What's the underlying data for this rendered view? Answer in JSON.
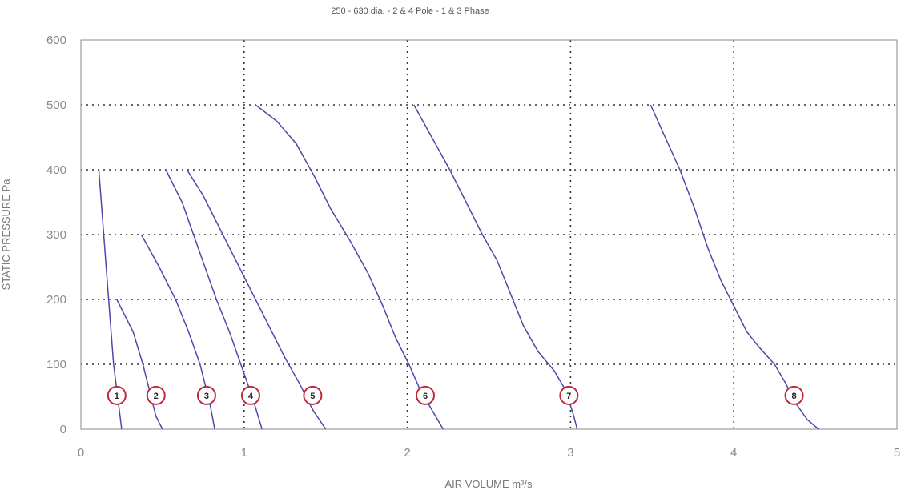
{
  "chart_data": {
    "type": "line",
    "title": "250 - 630 dia. - 2 & 4 Pole - 1 & 3 Phase",
    "xlabel": "AIR VOLUME m³/s",
    "ylabel": "STATIC PRESSURE Pa",
    "xlim": [
      0,
      5
    ],
    "ylim": [
      0,
      600
    ],
    "xticks": [
      "0",
      "1",
      "2",
      "3",
      "4",
      "5"
    ],
    "yticks": [
      "0",
      "100",
      "200",
      "300",
      "400",
      "500",
      "600"
    ],
    "grid": true,
    "series": [
      {
        "name": "1",
        "x": [
          0.11,
          0.14,
          0.17,
          0.2,
          0.22,
          0.24,
          0.25
        ],
        "y": [
          400,
          300,
          200,
          100,
          60,
          20,
          0
        ]
      },
      {
        "name": "2",
        "x": [
          0.22,
          0.32,
          0.38,
          0.42,
          0.46,
          0.5
        ],
        "y": [
          200,
          150,
          100,
          60,
          20,
          0
        ]
      },
      {
        "name": "3",
        "x": [
          0.37,
          0.48,
          0.58,
          0.66,
          0.73,
          0.79,
          0.82
        ],
        "y": [
          300,
          250,
          200,
          150,
          100,
          40,
          0
        ]
      },
      {
        "name": "4",
        "x": [
          0.52,
          0.62,
          0.69,
          0.76,
          0.83,
          0.91,
          0.98,
          1.05,
          1.11
        ],
        "y": [
          400,
          350,
          300,
          250,
          200,
          150,
          100,
          50,
          0
        ]
      },
      {
        "name": "5",
        "x": [
          0.65,
          0.75,
          0.85,
          0.95,
          1.05,
          1.15,
          1.25,
          1.34,
          1.42,
          1.5
        ],
        "y": [
          400,
          360,
          310,
          260,
          210,
          160,
          110,
          70,
          30,
          0
        ]
      },
      {
        "name": "6",
        "x": [
          1.07,
          1.2,
          1.32,
          1.43,
          1.53,
          1.65,
          1.76,
          1.85,
          1.93,
          2.01,
          2.08,
          2.15,
          2.22
        ],
        "y": [
          500,
          475,
          440,
          390,
          340,
          290,
          240,
          190,
          140,
          100,
          60,
          30,
          0
        ]
      },
      {
        "name": "7",
        "x": [
          2.04,
          2.15,
          2.26,
          2.36,
          2.46,
          2.55,
          2.63,
          2.71,
          2.8,
          2.9,
          2.97,
          3.02,
          3.04
        ],
        "y": [
          500,
          450,
          400,
          350,
          300,
          260,
          210,
          160,
          120,
          90,
          60,
          20,
          0
        ]
      },
      {
        "name": "8",
        "x": [
          3.49,
          3.58,
          3.67,
          3.76,
          3.84,
          3.92,
          4.0,
          4.08,
          4.16,
          4.25,
          4.32,
          4.38,
          4.45,
          4.52
        ],
        "y": [
          500,
          450,
          400,
          340,
          280,
          230,
          190,
          150,
          125,
          100,
          70,
          40,
          15,
          0
        ]
      }
    ],
    "markers": [
      {
        "label": "1",
        "x": 0.22,
        "y": 52
      },
      {
        "label": "2",
        "x": 0.46,
        "y": 52
      },
      {
        "label": "3",
        "x": 0.77,
        "y": 52
      },
      {
        "label": "4",
        "x": 1.04,
        "y": 52
      },
      {
        "label": "5",
        "x": 1.42,
        "y": 52
      },
      {
        "label": "6",
        "x": 2.11,
        "y": 52
      },
      {
        "label": "7",
        "x": 2.99,
        "y": 52
      },
      {
        "label": "8",
        "x": 4.37,
        "y": 52
      }
    ],
    "colors": {
      "curve": "#4a4aa8",
      "marker_border": "#c0283c"
    }
  }
}
